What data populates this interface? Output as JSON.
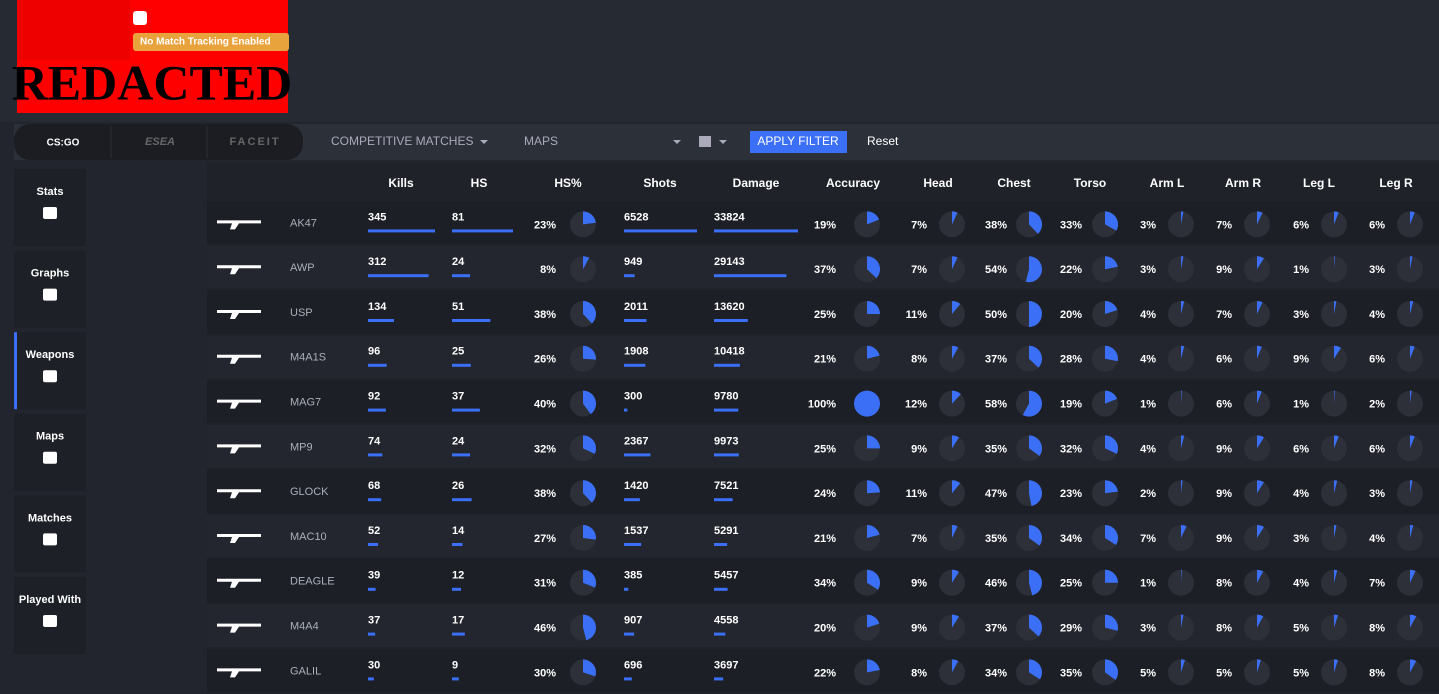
{
  "header": {
    "logo": "REDACTED",
    "badge": "No Match Tracking Enabled"
  },
  "filters": {
    "tabs": [
      "CS:GO",
      "ESEA",
      "FACEIT"
    ],
    "mode": "COMPETITIVE MATCHES",
    "maps": "MAPS",
    "apply": "APPLY FILTER",
    "reset": "Reset"
  },
  "sidebar": [
    "Stats",
    "Graphs",
    "Weapons",
    "Maps",
    "Matches",
    "Played With"
  ],
  "table": {
    "columns": [
      "Kills",
      "HS",
      "HS%",
      "Shots",
      "Damage",
      "Accuracy",
      "Head",
      "Chest",
      "Torso",
      "Arm L",
      "Arm R",
      "Leg L",
      "Leg R"
    ],
    "rows": [
      {
        "weapon": "AK47",
        "cells": [
          345,
          81,
          {
            "value": 23,
            "label": "23%"
          },
          6528,
          33824,
          {
            "value": 19,
            "label": "19%"
          },
          {
            "value": 7,
            "label": "7%"
          },
          {
            "value": 38,
            "label": "38%"
          },
          {
            "value": 33,
            "label": "33%"
          },
          {
            "value": 3,
            "label": "3%"
          },
          {
            "value": 7,
            "label": "7%"
          },
          {
            "value": 6,
            "label": "6%"
          },
          {
            "value": 6,
            "label": "6%"
          }
        ]
      },
      {
        "weapon": "AWP",
        "cells": [
          312,
          24,
          {
            "value": 8,
            "label": "8%"
          },
          949,
          29143,
          {
            "value": 37,
            "label": "37%"
          },
          {
            "value": 7,
            "label": "7%"
          },
          {
            "value": 54,
            "label": "54%"
          },
          {
            "value": 22,
            "label": "22%"
          },
          {
            "value": 3,
            "label": "3%"
          },
          {
            "value": 9,
            "label": "9%"
          },
          {
            "value": 1,
            "label": "1%"
          },
          {
            "value": 3,
            "label": "3%"
          }
        ]
      },
      {
        "weapon": "USP",
        "cells": [
          134,
          51,
          {
            "value": 38,
            "label": "38%"
          },
          2011,
          13620,
          {
            "value": 25,
            "label": "25%"
          },
          {
            "value": 11,
            "label": "11%"
          },
          {
            "value": 50,
            "label": "50%"
          },
          {
            "value": 20,
            "label": "20%"
          },
          {
            "value": 4,
            "label": "4%"
          },
          {
            "value": 7,
            "label": "7%"
          },
          {
            "value": 3,
            "label": "3%"
          },
          {
            "value": 4,
            "label": "4%"
          }
        ]
      },
      {
        "weapon": "M4A1S",
        "cells": [
          96,
          25,
          {
            "value": 26,
            "label": "26%"
          },
          1908,
          10418,
          {
            "value": 21,
            "label": "21%"
          },
          {
            "value": 8,
            "label": "8%"
          },
          {
            "value": 37,
            "label": "37%"
          },
          {
            "value": 28,
            "label": "28%"
          },
          {
            "value": 4,
            "label": "4%"
          },
          {
            "value": 6,
            "label": "6%"
          },
          {
            "value": 9,
            "label": "9%"
          },
          {
            "value": 6,
            "label": "6%"
          }
        ]
      },
      {
        "weapon": "MAG7",
        "cells": [
          92,
          37,
          {
            "value": 40,
            "label": "40%"
          },
          300,
          9780,
          {
            "value": 100,
            "label": "100%"
          },
          {
            "value": 12,
            "label": "12%"
          },
          {
            "value": 58,
            "label": "58%"
          },
          {
            "value": 19,
            "label": "19%"
          },
          {
            "value": 1,
            "label": "1%"
          },
          {
            "value": 6,
            "label": "6%"
          },
          {
            "value": 1,
            "label": "1%"
          },
          {
            "value": 2,
            "label": "2%"
          }
        ]
      },
      {
        "weapon": "MP9",
        "cells": [
          74,
          24,
          {
            "value": 32,
            "label": "32%"
          },
          2367,
          9973,
          {
            "value": 25,
            "label": "25%"
          },
          {
            "value": 9,
            "label": "9%"
          },
          {
            "value": 35,
            "label": "35%"
          },
          {
            "value": 32,
            "label": "32%"
          },
          {
            "value": 4,
            "label": "4%"
          },
          {
            "value": 9,
            "label": "9%"
          },
          {
            "value": 6,
            "label": "6%"
          },
          {
            "value": 6,
            "label": "6%"
          }
        ]
      },
      {
        "weapon": "GLOCK",
        "cells": [
          68,
          26,
          {
            "value": 38,
            "label": "38%"
          },
          1420,
          7521,
          {
            "value": 24,
            "label": "24%"
          },
          {
            "value": 11,
            "label": "11%"
          },
          {
            "value": 47,
            "label": "47%"
          },
          {
            "value": 23,
            "label": "23%"
          },
          {
            "value": 2,
            "label": "2%"
          },
          {
            "value": 9,
            "label": "9%"
          },
          {
            "value": 4,
            "label": "4%"
          },
          {
            "value": 3,
            "label": "3%"
          }
        ]
      },
      {
        "weapon": "MAC10",
        "cells": [
          52,
          14,
          {
            "value": 27,
            "label": "27%"
          },
          1537,
          5291,
          {
            "value": 21,
            "label": "21%"
          },
          {
            "value": 7,
            "label": "7%"
          },
          {
            "value": 35,
            "label": "35%"
          },
          {
            "value": 34,
            "label": "34%"
          },
          {
            "value": 7,
            "label": "7%"
          },
          {
            "value": 9,
            "label": "9%"
          },
          {
            "value": 3,
            "label": "3%"
          },
          {
            "value": 4,
            "label": "4%"
          }
        ]
      },
      {
        "weapon": "DEAGLE",
        "cells": [
          39,
          12,
          {
            "value": 31,
            "label": "31%"
          },
          385,
          5457,
          {
            "value": 34,
            "label": "34%"
          },
          {
            "value": 9,
            "label": "9%"
          },
          {
            "value": 46,
            "label": "46%"
          },
          {
            "value": 25,
            "label": "25%"
          },
          {
            "value": 1,
            "label": "1%"
          },
          {
            "value": 8,
            "label": "8%"
          },
          {
            "value": 4,
            "label": "4%"
          },
          {
            "value": 7,
            "label": "7%"
          }
        ]
      },
      {
        "weapon": "M4A4",
        "cells": [
          37,
          17,
          {
            "value": 46,
            "label": "46%"
          },
          907,
          4558,
          {
            "value": 20,
            "label": "20%"
          },
          {
            "value": 9,
            "label": "9%"
          },
          {
            "value": 37,
            "label": "37%"
          },
          {
            "value": 29,
            "label": "29%"
          },
          {
            "value": 3,
            "label": "3%"
          },
          {
            "value": 8,
            "label": "8%"
          },
          {
            "value": 5,
            "label": "5%"
          },
          {
            "value": 8,
            "label": "8%"
          }
        ]
      },
      {
        "weapon": "GALIL",
        "cells": [
          30,
          9,
          {
            "value": 30,
            "label": "30%"
          },
          696,
          3697,
          {
            "value": 22,
            "label": "22%"
          },
          {
            "value": 8,
            "label": "8%"
          },
          {
            "value": 34,
            "label": "34%"
          },
          {
            "value": 35,
            "label": "35%"
          },
          {
            "value": 5,
            "label": "5%"
          },
          {
            "value": 5,
            "label": "5%"
          },
          {
            "value": 5,
            "label": "5%"
          },
          {
            "value": 8,
            "label": "8%"
          }
        ]
      }
    ]
  }
}
